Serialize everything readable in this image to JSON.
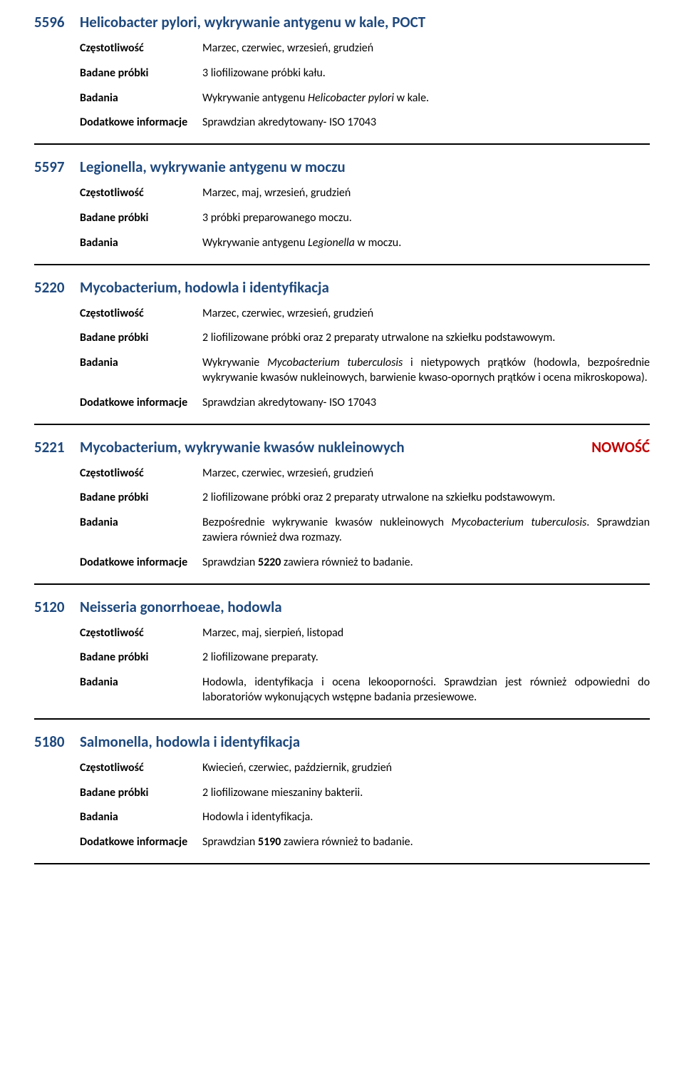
{
  "labels": {
    "freq": "Częstotliwość",
    "samples": "Badane próbki",
    "tests": "Badania",
    "extra": "Dodatkowe informacje",
    "new_badge": "NOWOŚĆ"
  },
  "entries": [
    {
      "code": "5596",
      "title": "Helicobacter pylori, wykrywanie antygenu w kale, POCT",
      "freq": "Marzec, czerwiec, wrzesień, grudzień",
      "samples": "3 liofilizowane próbki kału.",
      "tests_html": "Wykrywanie antygenu <em>Helicobacter pylori</em> w kale.",
      "extra": "Sprawdzian akredytowany- ISO 17043",
      "badge": false
    },
    {
      "code": "5597",
      "title": "Legionella, wykrywanie antygenu w moczu",
      "freq": "Marzec, maj, wrzesień, grudzień",
      "samples": "3 próbki preparowanego moczu.",
      "tests_html": "Wykrywanie antygenu <em>Legionella</em> w moczu.",
      "extra": null,
      "badge": false
    },
    {
      "code": "5220",
      "title": "Mycobacterium, hodowla i identyfikacja",
      "freq": "Marzec, czerwiec, wrzesień, grudzień",
      "samples": "2 liofilizowane próbki oraz 2 preparaty utrwalone na szkiełku podstawowym.",
      "tests_html": "Wykrywanie <em>Mycobacterium tuberculosis</em> i nietypowych prątków (hodowla, bezpośrednie wykrywanie kwasów nukleinowych, barwienie kwaso-opornych prątków i ocena mikroskopowa).",
      "extra": "Sprawdzian akredytowany- ISO 17043",
      "badge": false
    },
    {
      "code": "5221",
      "title": "Mycobacterium, wykrywanie kwasów nukleinowych",
      "freq": "Marzec, czerwiec, wrzesień, grudzień",
      "samples": "2 liofilizowane próbki oraz 2 preparaty utrwalone na szkiełku podstawowym.",
      "tests_html": "Bezpośrednie wykrywanie kwasów nukleinowych <em>Mycobacterium tuberculosis</em>. Sprawdzian zawiera również dwa rozmazy.",
      "extra_html": "Sprawdzian <b>5220</b> zawiera również to badanie.",
      "badge": true
    },
    {
      "code": "5120",
      "title": "Neisseria gonorrhoeae, hodowla",
      "freq": "Marzec, maj, sierpień, listopad",
      "samples": "2 liofilizowane preparaty.",
      "tests_html": "Hodowla, identyfikacja i ocena lekooporności. Sprawdzian jest również odpowiedni do laboratoriów wykonujących wstępne badania przesiewowe.",
      "extra": null,
      "badge": false
    },
    {
      "code": "5180",
      "title": "Salmonella, hodowla i identyfikacja",
      "freq": "Kwiecień, czerwiec, październik, grudzień",
      "samples": "2 liofilizowane mieszaniny bakterii.",
      "tests_html": "Hodowla i identyfikacja.",
      "extra_html": "Sprawdzian <b>5190</b> zawiera również to badanie.",
      "badge": false
    }
  ]
}
